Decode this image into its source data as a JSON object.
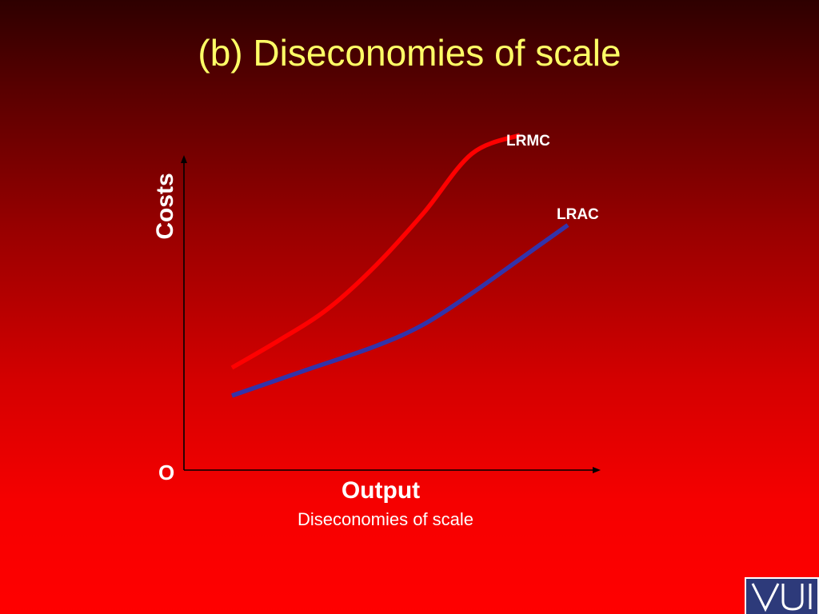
{
  "slide": {
    "title": "(b) Diseconomies of scale",
    "caption": "Diseconomies of scale",
    "logo_text": "VU"
  },
  "colors": {
    "title": "#ffff66",
    "lrmc": "#ff0000",
    "lrac": "#3333aa",
    "axis": "#000000",
    "text": "#ffffff"
  },
  "chart_data": {
    "type": "line",
    "xlabel": "Output",
    "ylabel": "Costs",
    "origin_label": "O",
    "xlim": [
      0,
      10
    ],
    "ylim": [
      0,
      10
    ],
    "grid": false,
    "series": [
      {
        "name": "LRMC",
        "color": "#ff0000",
        "x": [
          1,
          2,
          3,
          4,
          5,
          6,
          7
        ],
        "y": [
          3.3,
          4.2,
          5.2,
          6.6,
          8.3,
          10.2,
          10.8
        ]
      },
      {
        "name": "LRAC",
        "color": "#3333aa",
        "x": [
          1,
          2.5,
          4,
          5,
          6,
          7,
          8
        ],
        "y": [
          2.4,
          3.2,
          4.0,
          4.7,
          5.7,
          6.8,
          7.9
        ]
      }
    ]
  }
}
